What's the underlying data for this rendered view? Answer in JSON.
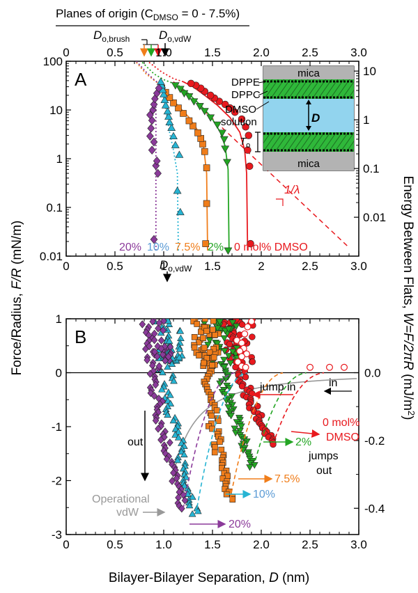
{
  "figure": {
    "top_axis_label": "Planes of origin (C",
    "top_axis_label_sub": "DMSO",
    "top_axis_label_tail": " = 0 - 7.5%)",
    "brush_label": "D",
    "brush_sub": "o,brush",
    "vdw_label": "D",
    "vdw_sub": "o,vdW",
    "y_left_label_a": "Force/Radius, ",
    "y_left_label_italic": "F/R",
    "y_left_label_b": " (mN/m)",
    "y_right_label_a": "Energy Between Flats, ",
    "y_right_label_italic": "W=F/2πR",
    "y_right_label_b": " (mJ/m",
    "y_right_label_sup": "2",
    "y_right_label_c": ")",
    "x_label_a": "Bilayer-Bilayer Separation, ",
    "x_label_italic": "D",
    "x_label_b": " (nm)"
  },
  "colors": {
    "c0": "#e8191e",
    "c2": "#23a523",
    "c75": "#f07d1a",
    "c10": "#27b4d3",
    "c20": "#8b3a9a",
    "gray": "#999999",
    "lipid": "#2fb83a",
    "solution": "#92d4ee",
    "mica": "#b3b3b3"
  },
  "chart_data": [
    {
      "panel": "A",
      "type": "scatter",
      "y_scale": "log",
      "xlim": [
        0,
        3.0
      ],
      "ylim": [
        0.01,
        100
      ],
      "x_ticks": [
        "0",
        "0.5",
        "1",
        "1.5",
        "2",
        "2.5",
        "3.0"
      ],
      "top_x_ticks": [
        "0",
        "0.5",
        "1.0",
        "1.5",
        "2.0",
        "2.5",
        "3.0"
      ],
      "y_ticks_left": [
        "0.01",
        "0.1",
        "1",
        "10",
        "100"
      ],
      "y_ticks_right": [
        "0.01",
        "0.1",
        "1",
        "10"
      ],
      "decay_label": "1/λ",
      "inset": {
        "mica_top": "mica",
        "mica_bottom": "mica",
        "dppe": "DPPE",
        "dppc": "DPPC",
        "dmso": "DMSO",
        "solution": "solution",
        "d_label": "D",
        "to_label": "T",
        "to_sub": "o"
      },
      "series": [
        {
          "name": "0 mol% DMSO",
          "color_key": "c0",
          "marker": "circle",
          "points": [
            [
              1.89,
              0.018
            ],
            [
              1.88,
              0.7
            ],
            [
              1.86,
              1.5
            ],
            [
              1.87,
              3.0
            ],
            [
              1.84,
              4.5
            ],
            [
              1.8,
              6.5
            ],
            [
              1.73,
              9.0
            ],
            [
              1.68,
              11.0
            ],
            [
              1.63,
              13.0
            ],
            [
              1.57,
              15.0
            ],
            [
              1.52,
              17.5
            ],
            [
              1.48,
              20.0
            ],
            [
              1.42,
              24.0
            ],
            [
              1.38,
              28.0
            ],
            [
              1.33,
              32.0
            ],
            [
              1.28,
              35.0
            ]
          ],
          "fit": [
            [
              1.86,
              0.013
            ],
            [
              1.85,
              0.5
            ],
            [
              1.83,
              1.5
            ],
            [
              1.78,
              3.5
            ],
            [
              1.68,
              7.0
            ],
            [
              1.55,
              12.5
            ],
            [
              1.42,
              20.0
            ],
            [
              1.3,
              30.0
            ],
            [
              1.2,
              38.0
            ]
          ]
        },
        {
          "name": "2%",
          "color_key": "c2",
          "marker": "triangle-down",
          "points": [
            [
              1.66,
              0.013
            ],
            [
              1.65,
              0.85
            ],
            [
              1.63,
              1.6
            ],
            [
              1.62,
              2.5
            ],
            [
              1.6,
              3.4
            ],
            [
              1.55,
              5.0
            ],
            [
              1.48,
              7.0
            ],
            [
              1.42,
              9.5
            ],
            [
              1.37,
              12.0
            ],
            [
              1.31,
              15.0
            ],
            [
              1.26,
              19.0
            ],
            [
              1.21,
              22.0
            ],
            [
              1.17,
              27.0
            ],
            [
              1.12,
              32.0
            ]
          ],
          "fit": [
            [
              1.67,
              0.013
            ],
            [
              1.66,
              0.6
            ],
            [
              1.63,
              1.8
            ],
            [
              1.58,
              3.5
            ],
            [
              1.48,
              7.5
            ],
            [
              1.36,
              13.5
            ],
            [
              1.25,
              22.0
            ],
            [
              1.15,
              32.0
            ]
          ]
        },
        {
          "name": "7.5%",
          "color_key": "c75",
          "marker": "square",
          "points": [
            [
              1.43,
              0.018
            ],
            [
              1.44,
              0.12
            ],
            [
              1.44,
              0.65
            ],
            [
              1.42,
              1.4
            ],
            [
              1.4,
              2.0
            ],
            [
              1.38,
              2.6
            ],
            [
              1.35,
              3.4
            ],
            [
              1.3,
              4.7
            ],
            [
              1.26,
              6.0
            ],
            [
              1.2,
              8.5
            ],
            [
              1.15,
              11.0
            ],
            [
              1.1,
              14.0
            ],
            [
              1.06,
              18.0
            ],
            [
              1.02,
              23.0
            ],
            [
              0.98,
              28.0
            ]
          ],
          "fit": [
            [
              1.45,
              0.013
            ],
            [
              1.44,
              0.5
            ],
            [
              1.41,
              1.7
            ],
            [
              1.36,
              3.5
            ],
            [
              1.26,
              7.0
            ],
            [
              1.15,
              12.0
            ],
            [
              1.05,
              20.0
            ],
            [
              0.97,
              32.0
            ]
          ]
        },
        {
          "name": "10%",
          "color_key": "c10",
          "marker": "triangle-up",
          "points": [
            [
              1.17,
              0.08
            ],
            [
              1.14,
              0.22
            ],
            [
              1.16,
              1.2
            ],
            [
              1.12,
              1.9
            ],
            [
              1.1,
              2.9
            ],
            [
              1.08,
              4.3
            ],
            [
              1.06,
              5.6
            ],
            [
              1.05,
              7.3
            ],
            [
              1.04,
              9.4
            ],
            [
              1.02,
              12.5
            ],
            [
              1.01,
              16.0
            ],
            [
              1.0,
              21.0
            ],
            [
              0.99,
              26.0
            ],
            [
              0.98,
              32.0
            ],
            [
              0.97,
              38.0
            ]
          ],
          "fit": [
            [
              1.15,
              0.013
            ],
            [
              1.14,
              0.5
            ],
            [
              1.1,
              1.5
            ],
            [
              1.06,
              3.5
            ],
            [
              1.03,
              8.0
            ],
            [
              1.0,
              18.0
            ],
            [
              0.98,
              32.0
            ]
          ]
        },
        {
          "name": "20%",
          "color_key": "c20",
          "marker": "diamond",
          "points": [
            [
              0.9,
              0.022
            ],
            [
              0.94,
              0.5
            ],
            [
              0.92,
              0.72
            ],
            [
              0.93,
              0.9
            ],
            [
              0.88,
              1.5
            ],
            [
              0.9,
              2.2
            ],
            [
              0.86,
              2.9
            ],
            [
              0.87,
              4.2
            ],
            [
              0.88,
              6.1
            ],
            [
              0.86,
              7.9
            ],
            [
              0.89,
              10.0
            ],
            [
              0.9,
              13.0
            ],
            [
              0.91,
              17.0
            ],
            [
              0.93,
              22.0
            ],
            [
              0.95,
              28.0
            ]
          ],
          "fit": [
            [
              0.92,
              0.013
            ],
            [
              0.92,
              20.0
            ],
            [
              0.95,
              35.0
            ]
          ]
        }
      ]
    },
    {
      "panel": "B",
      "type": "scatter",
      "y_scale": "linear",
      "xlim": [
        0,
        3.0
      ],
      "ylim": [
        -3,
        1
      ],
      "x_ticks": [
        "0",
        "0.5",
        "1.0",
        "1.5",
        "2.0",
        "2.5",
        "3.0"
      ],
      "y_ticks_left": [
        "-3",
        "-2",
        "-1",
        "0",
        "1"
      ],
      "y_ticks_right": [
        "-0.4",
        "-0.2",
        "0.0"
      ],
      "annotations": {
        "jump_in": "jump in",
        "in": "in",
        "out": "out",
        "jumps_out_a": "jumps",
        "jumps_out_b": "out",
        "operational_a": "Operational",
        "operational_b": "vdW",
        "label_0_a": "0 mol%",
        "label_0_b": "DMSO",
        "label_2": "2%",
        "label_75": "7.5%",
        "label_10": "10%",
        "label_20": "20%"
      },
      "series": [
        {
          "name": "0 mol% DMSO",
          "color_key": "c0",
          "marker": "circle",
          "jump_out": [
            2.12,
            -1.33
          ],
          "d_min": 1.66,
          "d_max": 2.12
        },
        {
          "name": "2%",
          "color_key": "c2",
          "marker": "triangle-down",
          "jump_out": [
            1.92,
            -1.75
          ],
          "d_min": 1.5,
          "d_max": 1.94
        },
        {
          "name": "7.5%",
          "color_key": "c75",
          "marker": "square",
          "jump_out": [
            1.68,
            -2.35
          ],
          "d_min": 1.38,
          "d_max": 1.7
        },
        {
          "name": "10%",
          "color_key": "c10",
          "marker": "triangle-up",
          "jump_out": [
            1.33,
            -2.62
          ],
          "d_min": 0.98,
          "d_max": 1.33
        },
        {
          "name": "20%",
          "color_key": "c20",
          "marker": "diamond",
          "jump_out": [
            1.2,
            -2.52
          ],
          "d_min": 0.88,
          "d_max": 1.2
        }
      ]
    }
  ]
}
